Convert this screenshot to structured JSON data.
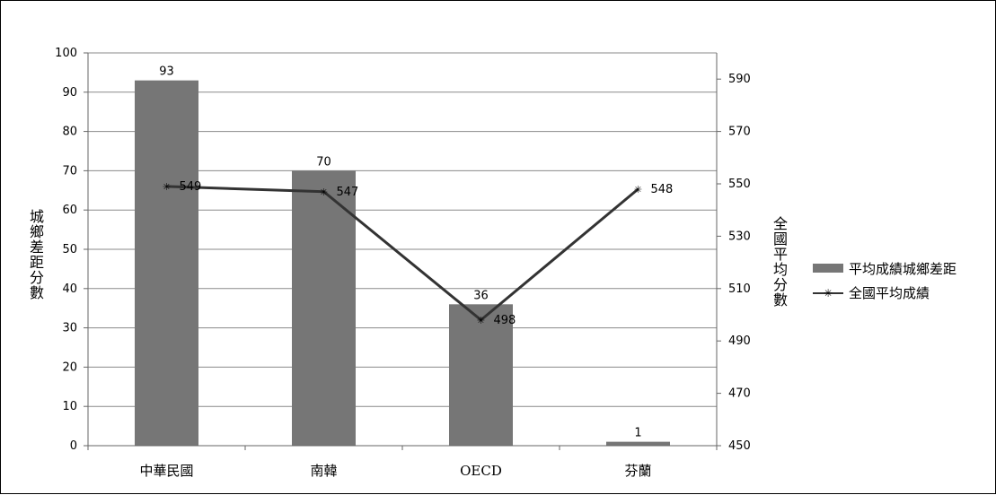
{
  "chart_data": {
    "type": "bar",
    "categories": [
      "中華民國",
      "南韓",
      "OECD",
      "芬蘭"
    ],
    "series": [
      {
        "name": "平均成績城鄉差距",
        "type": "bar",
        "axis": "left",
        "values": [
          93,
          70,
          36,
          1
        ]
      },
      {
        "name": "全國平均成績",
        "type": "line",
        "axis": "right",
        "values": [
          549,
          547,
          498,
          548
        ]
      }
    ],
    "ylabel": "城鄉差距分數",
    "y2label": "全國平均分數",
    "ylim": [
      0,
      100
    ],
    "y2lim": [
      450,
      600
    ],
    "yticks": [
      "0",
      "10",
      "20",
      "30",
      "40",
      "50",
      "60",
      "70",
      "80",
      "90",
      "100"
    ],
    "y2ticks": [
      "450",
      "470",
      "490",
      "510",
      "530",
      "550",
      "570",
      "590"
    ],
    "grid": true,
    "legend": "right",
    "colors": {
      "bar": "#767676",
      "line": "#333333",
      "grid": "#8a8a8a"
    }
  }
}
